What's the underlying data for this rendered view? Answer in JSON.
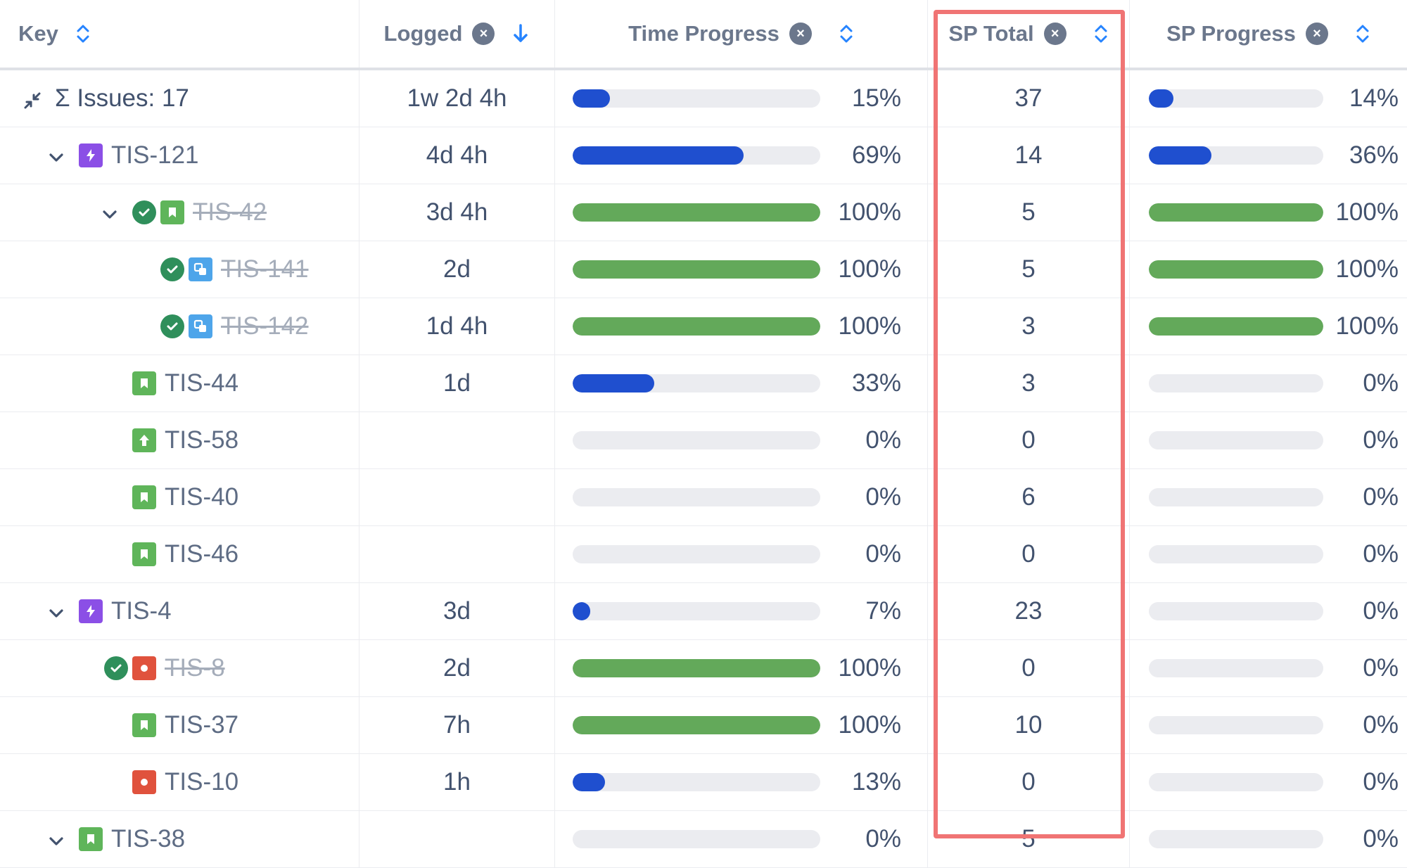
{
  "columns": {
    "key": "Key",
    "logged": "Logged",
    "time_progress": "Time Progress",
    "sp_total": "SP Total",
    "sp_progress": "SP Progress"
  },
  "header_remove_glyph": "×",
  "summary": {
    "label": "Σ Issues: 17",
    "logged": "1w 2d 4h",
    "time_progress_pct": "15%",
    "time_progress_value": 0.15,
    "sp_total": "37",
    "sp_progress_pct": "14%",
    "sp_progress_value": 0.14
  },
  "colors": {
    "accent_blue": "#1f4fcf",
    "done_green": "#63a95a",
    "epic_purple": "#8b4fe6",
    "story_green": "#5fb55a",
    "bug_red": "#e0523d",
    "subtask_blue": "#4ea5ea",
    "highlight_red": "#f07474"
  },
  "rows": [
    {
      "key": "TIS-121",
      "indent": 1,
      "chevron": true,
      "status_done": false,
      "type": "epic",
      "done": false,
      "logged": "4d 4h",
      "time_pct": "69%",
      "time_val": 0.69,
      "time_color": "blue",
      "sp": "14",
      "sp_pct": "36%",
      "sp_val": 0.36,
      "sp_color": "blue"
    },
    {
      "key": "TIS-42",
      "indent": 2,
      "chevron": true,
      "status_done": true,
      "type": "story",
      "done": true,
      "logged": "3d 4h",
      "time_pct": "100%",
      "time_val": 1.0,
      "time_color": "green",
      "sp": "5",
      "sp_pct": "100%",
      "sp_val": 1.0,
      "sp_color": "green"
    },
    {
      "key": "TIS-141",
      "indent": 3,
      "chevron": false,
      "status_done": true,
      "type": "subtask",
      "done": true,
      "logged": "2d",
      "time_pct": "100%",
      "time_val": 1.0,
      "time_color": "green",
      "sp": "5",
      "sp_pct": "100%",
      "sp_val": 1.0,
      "sp_color": "green"
    },
    {
      "key": "TIS-142",
      "indent": 3,
      "chevron": false,
      "status_done": true,
      "type": "subtask",
      "done": true,
      "logged": "1d 4h",
      "time_pct": "100%",
      "time_val": 1.0,
      "time_color": "green",
      "sp": "3",
      "sp_pct": "100%",
      "sp_val": 1.0,
      "sp_color": "green"
    },
    {
      "key": "TIS-44",
      "indent": 2,
      "chevron": false,
      "status_done": false,
      "type": "story",
      "done": false,
      "logged": "1d",
      "time_pct": "33%",
      "time_val": 0.33,
      "time_color": "blue",
      "sp": "3",
      "sp_pct": "0%",
      "sp_val": 0,
      "sp_color": "blue"
    },
    {
      "key": "TIS-58",
      "indent": 2,
      "chevron": false,
      "status_done": false,
      "type": "improvement",
      "done": false,
      "logged": "",
      "time_pct": "0%",
      "time_val": 0,
      "time_color": "blue",
      "sp": "0",
      "sp_pct": "0%",
      "sp_val": 0,
      "sp_color": "blue"
    },
    {
      "key": "TIS-40",
      "indent": 2,
      "chevron": false,
      "status_done": false,
      "type": "story",
      "done": false,
      "logged": "",
      "time_pct": "0%",
      "time_val": 0,
      "time_color": "blue",
      "sp": "6",
      "sp_pct": "0%",
      "sp_val": 0,
      "sp_color": "blue"
    },
    {
      "key": "TIS-46",
      "indent": 2,
      "chevron": false,
      "status_done": false,
      "type": "story",
      "done": false,
      "logged": "",
      "time_pct": "0%",
      "time_val": 0,
      "time_color": "blue",
      "sp": "0",
      "sp_pct": "0%",
      "sp_val": 0,
      "sp_color": "blue"
    },
    {
      "key": "TIS-4",
      "indent": 1,
      "chevron": true,
      "status_done": false,
      "type": "epic",
      "done": false,
      "logged": "3d",
      "time_pct": "7%",
      "time_val": 0.07,
      "time_color": "blue",
      "sp": "23",
      "sp_pct": "0%",
      "sp_val": 0,
      "sp_color": "blue"
    },
    {
      "key": "TIS-8",
      "indent": 2,
      "chevron": false,
      "status_done": true,
      "type": "bug",
      "done": true,
      "logged": "2d",
      "time_pct": "100%",
      "time_val": 1.0,
      "time_color": "green",
      "sp": "0",
      "sp_pct": "0%",
      "sp_val": 0,
      "sp_color": "blue"
    },
    {
      "key": "TIS-37",
      "indent": 2,
      "chevron": false,
      "status_done": false,
      "type": "story",
      "done": false,
      "logged": "7h",
      "time_pct": "100%",
      "time_val": 1.0,
      "time_color": "green",
      "sp": "10",
      "sp_pct": "0%",
      "sp_val": 0,
      "sp_color": "blue"
    },
    {
      "key": "TIS-10",
      "indent": 2,
      "chevron": false,
      "status_done": false,
      "type": "bug",
      "done": false,
      "logged": "1h",
      "time_pct": "13%",
      "time_val": 0.13,
      "time_color": "blue",
      "sp": "0",
      "sp_pct": "0%",
      "sp_val": 0,
      "sp_color": "blue"
    },
    {
      "key": "TIS-38",
      "indent": 1,
      "chevron": true,
      "status_done": false,
      "type": "story",
      "done": false,
      "logged": "",
      "time_pct": "0%",
      "time_val": 0,
      "time_color": "blue",
      "sp": "5",
      "sp_pct": "0%",
      "sp_val": 0,
      "sp_color": "blue"
    }
  ]
}
